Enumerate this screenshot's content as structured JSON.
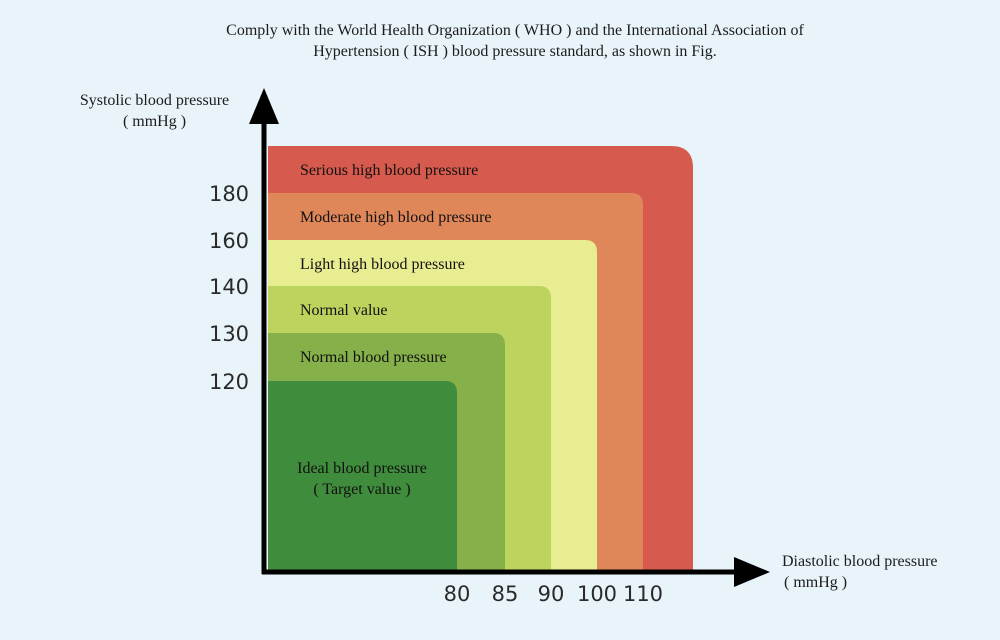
{
  "title": {
    "line1": "Comply with the World Health Organization ( WHO ) and the International Association of",
    "line2": "Hypertension ( ISH ) blood pressure standard, as shown in Fig."
  },
  "axes": {
    "ylabel": "Systolic blood pressure",
    "yunit": "( mmHg )",
    "xlabel": "Diastolic blood pressure",
    "xunit": "( mmHg )"
  },
  "chart_data": {
    "type": "area",
    "title": "Comply with the World Health Organization ( WHO ) and the International Association of Hypertension ( ISH ) blood pressure standard, as shown in Fig.",
    "xlabel": "Diastolic blood pressure ( mmHg )",
    "ylabel": "Systolic blood pressure ( mmHg )",
    "x_ticks": [
      80,
      85,
      90,
      100,
      110
    ],
    "y_ticks": [
      120,
      130,
      140,
      160,
      180
    ],
    "zones": [
      {
        "name": "Serious high blood pressure",
        "systolic_min": 180,
        "diastolic_min": 110,
        "color": "#d65a4d"
      },
      {
        "name": "Moderate high blood pressure",
        "systolic_max": 180,
        "diastolic_max": 110,
        "color": "#e0875a"
      },
      {
        "name": "Light high blood pressure",
        "systolic_max": 160,
        "diastolic_max": 100,
        "color": "#e8ed91"
      },
      {
        "name": "Normal value",
        "systolic_max": 140,
        "diastolic_max": 90,
        "color": "#bcd45e"
      },
      {
        "name": "Normal blood pressure",
        "systolic_max": 130,
        "diastolic_max": 85,
        "color": "#86b04a"
      },
      {
        "name": "Ideal blood pressure",
        "sublabel": "( Target value )",
        "systolic_max": 120,
        "diastolic_max": 80,
        "color": "#3f8c3d"
      }
    ]
  }
}
